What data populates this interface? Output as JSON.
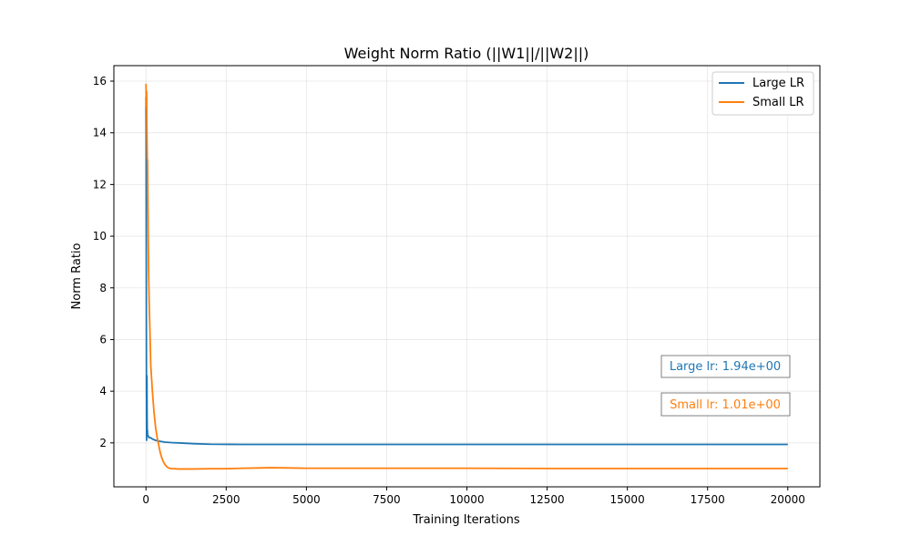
{
  "chart_data": {
    "type": "line",
    "title": "Weight Norm Ratio (||W1||/||W2||)",
    "xlabel": "Training Iterations",
    "ylabel": "Norm Ratio",
    "xlim": [
      -1000,
      21000
    ],
    "ylim": [
      0.3,
      16.6
    ],
    "xticks": [
      0,
      2500,
      5000,
      7500,
      10000,
      12500,
      15000,
      17500,
      20000
    ],
    "yticks": [
      2,
      4,
      6,
      8,
      10,
      12,
      14,
      16
    ],
    "grid": true,
    "legend_position": "top-right",
    "series": [
      {
        "name": "Large LR",
        "color": "#1f77b4",
        "x": [
          0,
          5,
          10,
          15,
          20,
          25,
          30,
          35,
          40,
          45,
          50,
          60,
          70,
          80,
          100,
          150,
          200,
          300,
          400,
          600,
          800,
          1000,
          1500,
          2000,
          3000,
          5000,
          10000,
          15000,
          20000
        ],
        "y": [
          15.4,
          14.0,
          9.0,
          4.0,
          2.1,
          3.5,
          4.6,
          3.0,
          2.3,
          2.5,
          2.3,
          2.3,
          2.25,
          2.25,
          2.2,
          2.2,
          2.15,
          2.1,
          2.07,
          2.03,
          2.01,
          2.0,
          1.97,
          1.95,
          1.94,
          1.94,
          1.94,
          1.94,
          1.94
        ]
      },
      {
        "name": "Small LR",
        "color": "#ff7f0e",
        "x": [
          0,
          10,
          20,
          30,
          40,
          50,
          60,
          70,
          80,
          100,
          120,
          150,
          200,
          250,
          300,
          350,
          400,
          450,
          500,
          550,
          600,
          650,
          700,
          800,
          900,
          1000,
          1200,
          1500,
          2000,
          2500,
          3000,
          3500,
          3900,
          4500,
          5000,
          7500,
          10000,
          12500,
          15000,
          17500,
          20000
        ],
        "y": [
          15.9,
          15.0,
          15.6,
          14.0,
          13.0,
          12.9,
          11.5,
          10.0,
          8.8,
          7.5,
          6.5,
          5.0,
          4.0,
          3.2,
          2.6,
          2.2,
          1.9,
          1.6,
          1.4,
          1.25,
          1.15,
          1.08,
          1.03,
          1.0,
          1.0,
          0.99,
          0.99,
          0.99,
          1.0,
          1.0,
          1.02,
          1.03,
          1.04,
          1.03,
          1.02,
          1.02,
          1.02,
          1.01,
          1.01,
          1.01,
          1.01
        ]
      }
    ],
    "annotations": [
      {
        "text": "Large lr: 1.94e+00",
        "color": "#1f77b4"
      },
      {
        "text": "Small lr: 1.01e+00",
        "color": "#ff7f0e"
      }
    ]
  }
}
